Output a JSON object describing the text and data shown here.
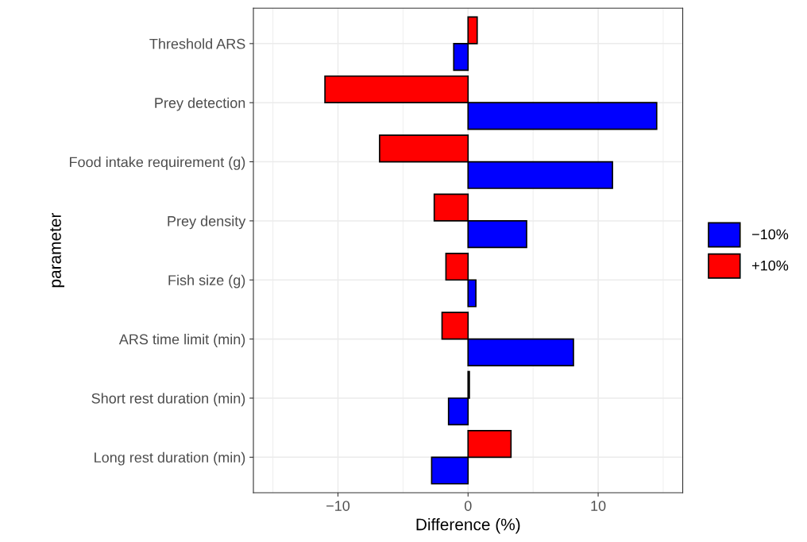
{
  "chart_data": {
    "type": "bar",
    "orientation": "horizontal",
    "xlabel": "Difference (%)",
    "ylabel": "parameter",
    "categories": [
      "Threshold ARS",
      "Prey detection",
      "Food intake requirement (g)",
      "Prey density",
      "Fish size (g)",
      "ARS time limit (min)",
      "Short rest duration (min)",
      "Long rest duration (min)"
    ],
    "series": [
      {
        "name": "−10%",
        "color": "#0000ff",
        "values": [
          -1.1,
          14.5,
          11.1,
          4.5,
          0.6,
          8.1,
          -1.5,
          -2.8
        ]
      },
      {
        "name": "+10%",
        "color": "#ff0000",
        "values": [
          0.7,
          -11.0,
          -6.8,
          -2.6,
          -1.7,
          -2.0,
          0.1,
          3.3
        ]
      }
    ],
    "xlim": [
      -16.5,
      16.5
    ],
    "xticks": [
      {
        "value": -10,
        "label": "−10"
      },
      0,
      10
    ],
    "grid": true,
    "legend": "right"
  }
}
